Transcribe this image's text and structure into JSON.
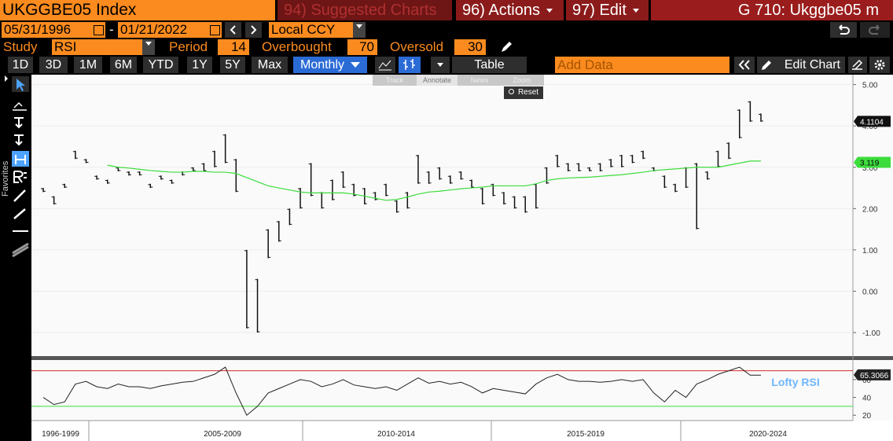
{
  "header": {
    "ticker": "UKGGBE05 Index",
    "suggested": "94) Suggested Charts",
    "actions": "96) Actions",
    "edit": "97) Edit",
    "function": "G 710: Ukggbe05 m"
  },
  "range": {
    "start": "05/31/1996",
    "separator": "-",
    "end": "01/21/2022",
    "currency": "Local CCY"
  },
  "study": {
    "label": "Study",
    "name": "RSI",
    "period_label": "Period",
    "period": 14,
    "overbought_label": "Overbought",
    "overbought": 70,
    "oversold_label": "Oversold",
    "oversold": 30
  },
  "toolbar": {
    "periods": [
      "1D",
      "3D",
      "1M",
      "6M",
      "YTD",
      "1Y",
      "5Y",
      "Max"
    ],
    "frequency": "Monthly",
    "table": "Table",
    "add_data": "Add Data",
    "edit_chart": "Edit Chart"
  },
  "overlay": {
    "tools": [
      "Track",
      "Annotate",
      "News",
      "Zoom"
    ],
    "reset": "Reset"
  },
  "sidebar": {
    "favorites": "Favorites"
  },
  "price_chart": {
    "type": "bar_range",
    "high": [
      2.5,
      2.3,
      2.6,
      3.4,
      3.2,
      2.8,
      2.7,
      3.0,
      2.9,
      2.9,
      2.6,
      2.8,
      2.7,
      2.9,
      3.0,
      3.1,
      3.4,
      3.8,
      3.2,
      1.0,
      0.3,
      1.5,
      1.7,
      2.0,
      2.5,
      3.1,
      2.4,
      2.7,
      2.9,
      2.6,
      2.5,
      2.4,
      2.6,
      2.2,
      2.4,
      3.3,
      2.9,
      3.0,
      2.8,
      2.9,
      2.7,
      2.5,
      2.6,
      2.4,
      2.3,
      2.3,
      2.6,
      3.0,
      3.3,
      3.1,
      3.1,
      3.0,
      3.1,
      3.2,
      3.3,
      3.3,
      3.4,
      3.0,
      2.8,
      2.6,
      3.0,
      3.1,
      2.9,
      3.4,
      3.6,
      4.4,
      4.6,
      4.3
    ],
    "low": [
      2.4,
      2.1,
      2.5,
      3.2,
      3.1,
      2.7,
      2.6,
      2.9,
      2.8,
      2.8,
      2.5,
      2.7,
      2.6,
      2.8,
      2.9,
      2.9,
      3.0,
      3.1,
      2.4,
      -0.9,
      -1.0,
      0.8,
      1.2,
      1.6,
      2.0,
      2.3,
      2.0,
      2.2,
      2.5,
      2.3,
      2.1,
      2.2,
      2.3,
      1.9,
      2.0,
      2.6,
      2.6,
      2.7,
      2.6,
      2.7,
      2.5,
      2.1,
      2.3,
      2.1,
      2.0,
      1.9,
      2.0,
      2.6,
      3.0,
      2.9,
      2.9,
      2.9,
      2.9,
      3.0,
      3.0,
      3.1,
      3.2,
      2.9,
      2.5,
      2.4,
      2.5,
      1.5,
      2.7,
      3.0,
      3.2,
      3.7,
      4.1,
      4.1
    ],
    "ma": [
      null,
      null,
      null,
      null,
      null,
      null,
      3.05,
      3.0,
      2.98,
      2.95,
      2.92,
      2.9,
      2.88,
      2.88,
      2.9,
      2.9,
      2.88,
      2.88,
      2.85,
      2.75,
      2.65,
      2.55,
      2.5,
      2.45,
      2.4,
      2.38,
      2.38,
      2.38,
      2.38,
      2.35,
      2.3,
      2.25,
      2.2,
      2.22,
      2.28,
      2.35,
      2.4,
      2.42,
      2.45,
      2.48,
      2.5,
      2.52,
      2.55,
      2.55,
      2.55,
      2.55,
      2.6,
      2.68,
      2.72,
      2.74,
      2.75,
      2.76,
      2.78,
      2.8,
      2.82,
      2.85,
      2.88,
      2.92,
      2.94,
      2.96,
      2.98,
      3.0,
      3.0,
      3.0,
      3.05,
      3.1,
      3.15,
      3.15
    ],
    "color": "#111111",
    "ma_color": "#3ddc3d",
    "ylim": [
      -1.57,
      5.24
    ],
    "yticks": [
      {
        "value": 5,
        "label": "5.00"
      },
      {
        "value": 4,
        "label": "4.00"
      },
      {
        "value": 3,
        "label": "3.00"
      },
      {
        "value": 2,
        "label": "2.00"
      },
      {
        "value": 1,
        "label": "1.00"
      },
      {
        "value": 0,
        "label": "0.00"
      },
      {
        "value": -1,
        "label": "-1.00"
      }
    ],
    "last_price": 4.1104,
    "last_ma": 3.119
  },
  "rsi_chart": {
    "type": "line",
    "values": [
      40,
      32,
      35,
      55,
      58,
      52,
      50,
      55,
      52,
      52,
      50,
      53,
      55,
      57,
      58,
      62,
      66,
      74,
      45,
      20,
      30,
      45,
      50,
      55,
      60,
      58,
      52,
      55,
      60,
      54,
      52,
      50,
      52,
      48,
      55,
      62,
      56,
      58,
      55,
      57,
      52,
      45,
      50,
      48,
      46,
      44,
      55,
      62,
      66,
      60,
      58,
      58,
      57,
      58,
      60,
      58,
      60,
      45,
      35,
      48,
      40,
      55,
      60,
      66,
      70,
      74,
      65,
      65
    ],
    "color": "#222222",
    "ylim": [
      14,
      82
    ],
    "yticks": [
      20,
      40,
      60
    ],
    "last_value": 65.3066,
    "title": "Lofty RSI"
  },
  "x_axis": {
    "periods": [
      "1996-1999",
      "2005-2009",
      "2010-2014",
      "2015-2019",
      "2020-2024"
    ]
  }
}
